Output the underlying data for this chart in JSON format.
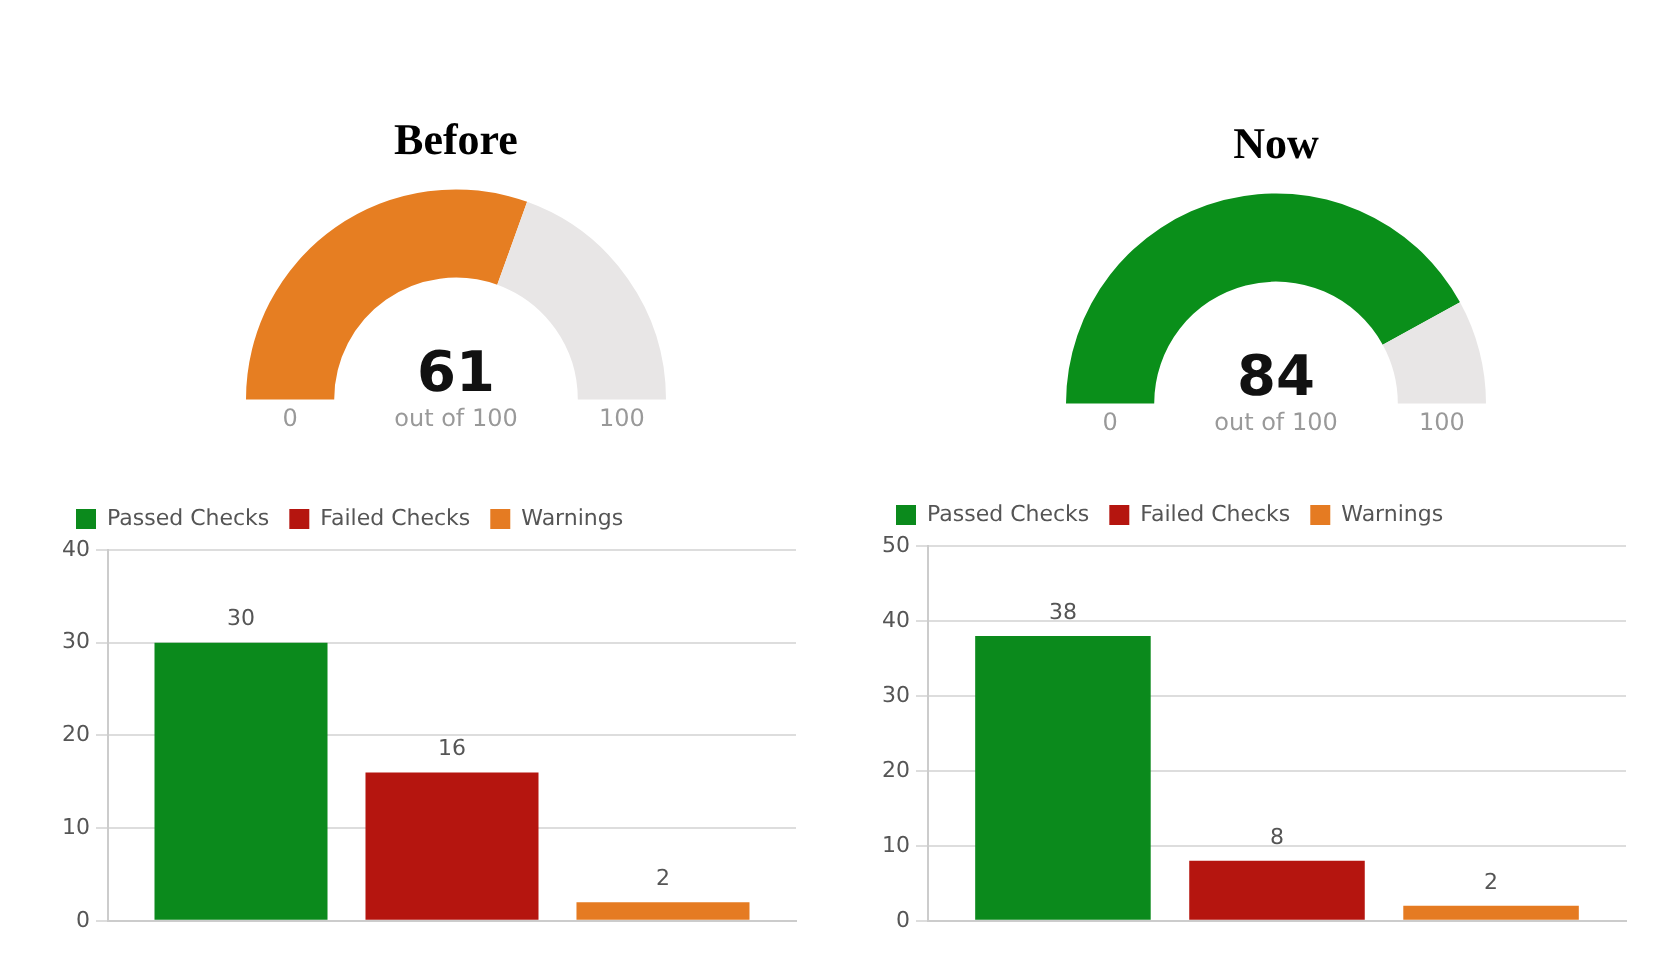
{
  "chart_data": [
    {
      "type": "donut",
      "title": "Before",
      "categories": [
        null,
        null
      ],
      "values": [
        61,
        39
      ],
      "colors": [
        "#e67e22",
        "#e8e6e6"
      ],
      "value_labels": [
        "61",
        null
      ],
      "annotations": [
        "out of 100",
        "0",
        "100"
      ]
    },
    {
      "type": "donut",
      "title": "Now",
      "categories": [
        null,
        null
      ],
      "values": [
        84,
        16
      ],
      "colors": [
        "#0a8f1a",
        "#e8e6e6"
      ],
      "value_labels": [
        "84",
        null
      ],
      "annotations": [
        "out of 100",
        "0",
        "100"
      ]
    },
    {
      "type": "bar",
      "categories": [
        null
      ],
      "series": [
        {
          "name": "Passed Checks",
          "color": "#0b8a1c",
          "values": [
            30
          ]
        },
        {
          "name": "Failed Checks",
          "color": "#b5150f",
          "values": [
            16
          ]
        },
        {
          "name": "Warnings",
          "color": "#e57b22",
          "values": [
            2
          ]
        }
      ],
      "ylim": [
        0,
        40
      ],
      "yticks": [
        0,
        10,
        20,
        30,
        40
      ],
      "grid": "y",
      "legend": "top left",
      "data_labels": true,
      "tick_labels": "y"
    },
    {
      "type": "bar",
      "categories": [
        null
      ],
      "series": [
        {
          "name": "Passed Checks",
          "color": "#0b8a1c",
          "values": [
            38
          ]
        },
        {
          "name": "Failed Checks",
          "color": "#b5150f",
          "values": [
            8
          ]
        },
        {
          "name": "Warnings",
          "color": "#e57b22",
          "values": [
            2
          ]
        }
      ],
      "ylim": [
        0,
        50
      ],
      "yticks": [
        0,
        10,
        20,
        30,
        40,
        50
      ],
      "grid": "y",
      "legend": "top left",
      "data_labels": true,
      "tick_labels": "y"
    }
  ]
}
